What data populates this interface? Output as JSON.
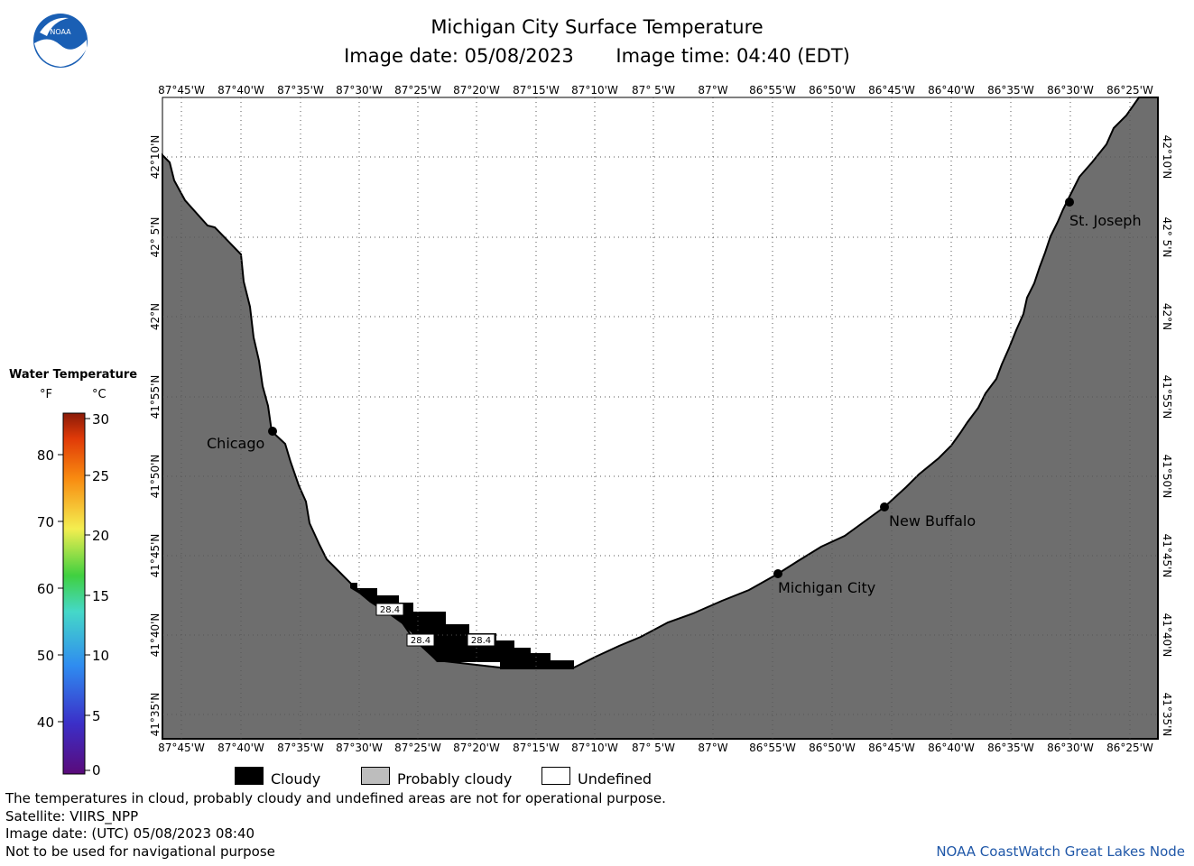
{
  "title": "Michigan City Surface Temperature",
  "image_date_label": "Image date: 05/08/2023",
  "image_time_label": "Image time: 04:40 (EDT)",
  "logo_text": "NOAA",
  "map": {
    "lon_labels": [
      "87°45'W",
      "87°40'W",
      "87°35'W",
      "87°30'W",
      "87°25'W",
      "87°20'W",
      "87°15'W",
      "87°10'W",
      "87° 5'W",
      "87°W",
      "86°55'W",
      "86°50'W",
      "86°45'W",
      "86°40'W",
      "86°35'W",
      "86°30'W",
      "86°25'W"
    ],
    "lat_labels": [
      "42°10'N",
      "42° 5'N",
      "42°N",
      "41°55'N",
      "41°50'N",
      "41°45'N",
      "41°40'N",
      "41°35'N"
    ],
    "cities": [
      {
        "name": "Chicago"
      },
      {
        "name": "Michigan City"
      },
      {
        "name": "New Buffalo"
      },
      {
        "name": "St. Joseph"
      }
    ],
    "temp_labels": [
      "28.4",
      "28.4",
      "28.4"
    ],
    "colors": {
      "land": "#6e6e6e",
      "cloud": "#000000",
      "water": "#ffffff",
      "grid": "#555555"
    }
  },
  "legend": {
    "title": "Water Temperature",
    "unit_f": "°F",
    "unit_c": "°C",
    "f_ticks": [
      "80",
      "70",
      "60",
      "50",
      "40"
    ],
    "c_ticks": [
      "30",
      "25",
      "20",
      "15",
      "10",
      "5",
      "0"
    ]
  },
  "key": {
    "cloudy": "Cloudy",
    "probably_cloudy": "Probably cloudy",
    "undefined": "Undefined"
  },
  "footer": {
    "note": "The temperatures in cloud, probably cloudy and undefined areas are not for operational purpose.",
    "satellite": "Satellite: VIIRS_NPP",
    "utc_date": "Image date: (UTC) 05/08/2023  08:40",
    "navigation": "Not to be used for navigational purpose",
    "node": "NOAA CoastWatch Great Lakes Node"
  }
}
